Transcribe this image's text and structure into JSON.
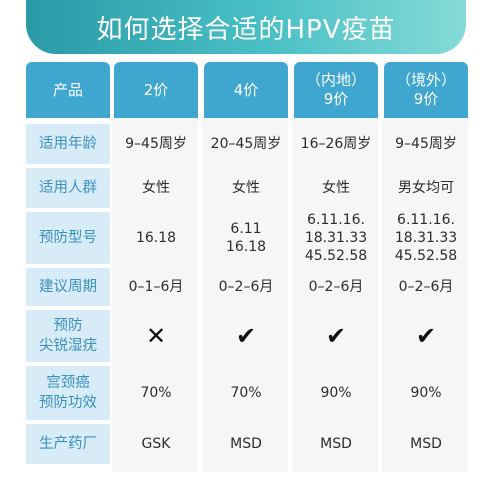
{
  "title": "如何选择合适的HPV疫苗",
  "header": {
    "product": "产品",
    "col1": "2价",
    "col2": "4价",
    "col3_line1": "（内地）",
    "col3_line2": "9价",
    "col4_line1": "（境外）",
    "col4_line2": "9价"
  },
  "rows": [
    {
      "label": [
        "适用年龄"
      ],
      "values": [
        [
          "9–45周岁"
        ],
        [
          "20–45周岁"
        ],
        [
          "16–26周岁"
        ],
        [
          "9–45周岁"
        ]
      ]
    },
    {
      "label": [
        "适用人群"
      ],
      "values": [
        [
          "女性"
        ],
        [
          "女性"
        ],
        [
          "女性"
        ],
        [
          "男女均可"
        ]
      ]
    },
    {
      "label": [
        "预防型号"
      ],
      "values": [
        [
          "16.18"
        ],
        [
          "6.11",
          "16.18"
        ],
        [
          "6.11.16.",
          "18.31.33",
          "45.52.58"
        ],
        [
          "6.11.16.",
          "18.31.33",
          "45.52.58"
        ]
      ]
    },
    {
      "label": [
        "建议周期"
      ],
      "values": [
        [
          "0–1–6月"
        ],
        [
          "0–2–6月"
        ],
        [
          "0–2–6月"
        ],
        [
          "0–2–6月"
        ]
      ]
    },
    {
      "label": [
        "预防",
        "尖锐湿疣"
      ],
      "marks": [
        "✕",
        "✔",
        "✔",
        "✔"
      ]
    },
    {
      "label": [
        "宫颈癌",
        "预防功效"
      ],
      "values": [
        [
          "70%"
        ],
        [
          "70%"
        ],
        [
          "90%"
        ],
        [
          "90%"
        ]
      ]
    },
    {
      "label": [
        "生产药厂"
      ],
      "values": [
        [
          "GSK"
        ],
        [
          "MSD"
        ],
        [
          "MSD"
        ],
        [
          "MSD"
        ]
      ]
    }
  ],
  "mark_names": [
    "cross-icon",
    "check-icon",
    "check-icon",
    "check-icon"
  ]
}
